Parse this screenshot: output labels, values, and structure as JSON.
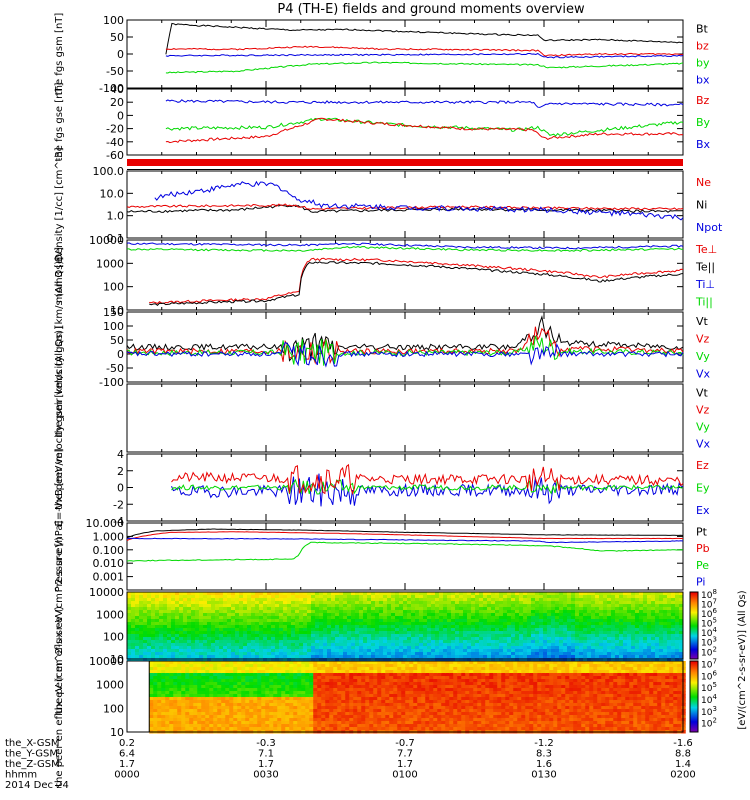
{
  "title": "P4 (TH-E) fields and ground moments overview",
  "date": "2014 Dec 24",
  "colors": {
    "black": "#000000",
    "red": "#e80000",
    "green": "#00d800",
    "blue": "#0000e0"
  },
  "colorbar_unit": "[eV/(cm^2-s-sr-eV)] (All Qs)",
  "colorbar_ticks": [
    "10^8",
    "10^7",
    "10^6",
    "10^5",
    "10^4",
    "10^3",
    "10^2"
  ],
  "xaxis": {
    "ticks": [
      "0000",
      "0030",
      "0100",
      "0130",
      "0200"
    ],
    "rows": [
      {
        "label": "the_X-GSM",
        "values": [
          "0.2",
          "-0.3",
          "-0.7",
          "-1.2",
          "-1.6"
        ]
      },
      {
        "label": "the_Y-GSM",
        "values": [
          "6.4",
          "7.1",
          "7.7",
          "8.3",
          "8.8"
        ]
      },
      {
        "label": "the_Z-GSM",
        "values": [
          "1.7",
          "1.7",
          "1.7",
          "1.6",
          "1.4"
        ]
      },
      {
        "label": "hhmm",
        "values": [
          "0000",
          "0030",
          "0100",
          "0130",
          "0200"
        ]
      }
    ]
  },
  "chart_data": [
    {
      "type": "line",
      "ylabel": "the fgs gsm [nT]",
      "ylim": [
        -100,
        100
      ],
      "yticks": [
        "100",
        "50",
        "0",
        "-50",
        "-100"
      ],
      "series": [
        {
          "name": "Bt",
          "color": "black"
        },
        {
          "name": "bz",
          "color": "red"
        },
        {
          "name": "by",
          "color": "green"
        },
        {
          "name": "bx",
          "color": "blue"
        }
      ]
    },
    {
      "type": "line",
      "ylabel": "the fgs gse [nT]",
      "ylim": [
        -60,
        40
      ],
      "yticks": [
        "40",
        "20",
        "0",
        "-20",
        "-40",
        "-60"
      ],
      "series": [
        {
          "name": "Bz",
          "color": "red"
        },
        {
          "name": "By",
          "color": "green"
        },
        {
          "name": "Bx",
          "color": "blue"
        }
      ]
    },
    {
      "type": "line",
      "ylabel": "Density [1/cc] [cm^-3]",
      "scale": "log",
      "ylim": [
        0.1,
        100
      ],
      "yticks": [
        "100.0",
        "10.0",
        "1.0",
        "0.1"
      ],
      "series": [
        {
          "name": "Ne",
          "color": "red"
        },
        {
          "name": "Ni",
          "color": "black"
        },
        {
          "name": "Npot",
          "color": "blue"
        }
      ]
    },
    {
      "type": "line",
      "ylabel": "mom3 [eV]",
      "scale": "log",
      "ylim": [
        10,
        10000
      ],
      "yticks": [
        "10000",
        "1000",
        "100",
        "10"
      ],
      "series": [
        {
          "name": "Te⊥",
          "color": "red"
        },
        {
          "name": "Te||",
          "color": "black"
        },
        {
          "name": "Ti⊥",
          "color": "blue"
        },
        {
          "name": "Ti||",
          "color": "green"
        }
      ]
    },
    {
      "type": "line",
      "ylabel": "the peir velocity gsm [km/s (All Qs)]",
      "ylim": [
        -100,
        150
      ],
      "yticks": [
        "150",
        "100",
        "50",
        "0",
        "-50",
        "-100"
      ],
      "series": [
        {
          "name": "Vt",
          "color": "black"
        },
        {
          "name": "Vz",
          "color": "red"
        },
        {
          "name": "Vy",
          "color": "green"
        },
        {
          "name": "Vx",
          "color": "blue"
        }
      ]
    },
    {
      "type": "line",
      "ylabel": "the peer velocity gsm [km/s (All Qs)]",
      "series": [
        {
          "name": "Vt",
          "color": "black"
        },
        {
          "name": "Vz",
          "color": "red"
        },
        {
          "name": "Vy",
          "color": "green"
        },
        {
          "name": "Vx",
          "color": "blue"
        }
      ]
    },
    {
      "type": "line",
      "ylabel": "E=-VxB [mV/m]",
      "ylim": [
        -4,
        4
      ],
      "yticks": [
        "4",
        "2",
        "0",
        "-2",
        "-4"
      ],
      "series": [
        {
          "name": "Ez",
          "color": "red"
        },
        {
          "name": "Ey",
          "color": "green"
        },
        {
          "name": "Ex",
          "color": "blue"
        }
      ]
    },
    {
      "type": "line",
      "ylabel": "Pressure [nPa]",
      "scale": "log",
      "ylim": [
        0.0001,
        10
      ],
      "yticks": [
        "10.000",
        "1.000",
        "0.100",
        "0.010",
        "0.001"
      ],
      "series": [
        {
          "name": "Pt",
          "color": "black"
        },
        {
          "name": "Pb",
          "color": "red"
        },
        {
          "name": "Pe",
          "color": "green"
        },
        {
          "name": "Pi",
          "color": "blue"
        }
      ]
    },
    {
      "type": "heatmap",
      "ylabel": "the peir en eflux eV (cm^2-s-sr-eV)",
      "scale": "log",
      "ylim": [
        10,
        10000
      ],
      "yticks": [
        "10000",
        "1000",
        "100",
        "10"
      ]
    },
    {
      "type": "heatmap",
      "ylabel": "the peer en eflux eV (cm^2-s-sr-eV)",
      "scale": "log",
      "ylim": [
        10,
        10000
      ],
      "yticks": [
        "10000",
        "1000",
        "100",
        "10"
      ]
    }
  ]
}
